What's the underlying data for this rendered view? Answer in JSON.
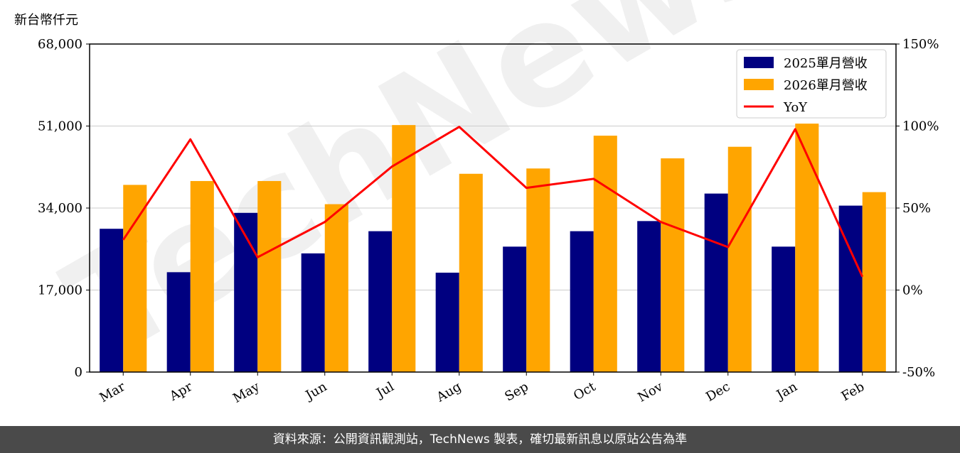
{
  "chart_data": {
    "type": "bar",
    "categories": [
      "Mar",
      "Apr",
      "May",
      "Jun",
      "Jul",
      "Aug",
      "Sep",
      "Oct",
      "Nov",
      "Dec",
      "Jan",
      "Feb"
    ],
    "series": [
      {
        "name": "2025單月營收",
        "type": "bar",
        "axis": "left",
        "color": "#000080",
        "values": [
          29700,
          20700,
          33000,
          24600,
          29200,
          20600,
          26000,
          29200,
          31300,
          37000,
          26000,
          34500
        ]
      },
      {
        "name": "2026單月營收",
        "type": "bar",
        "axis": "left",
        "color": "#FFA500",
        "values": [
          38800,
          39600,
          39600,
          34800,
          51200,
          41100,
          42200,
          49000,
          44300,
          46700,
          51500,
          37300
        ]
      },
      {
        "name": "YoY",
        "type": "line",
        "axis": "right",
        "color": "#FF0000",
        "values": [
          30.6,
          91.9,
          20.0,
          41.5,
          75.3,
          99.5,
          62.3,
          67.8,
          41.5,
          26.2,
          98.1,
          8.1
        ]
      }
    ],
    "ylabel": "新台幣仟元",
    "ylim": [
      0,
      68000
    ],
    "yticks": [
      "0",
      "17,000",
      "34,000",
      "51,000",
      "68,000"
    ],
    "y2lim": [
      -50,
      150
    ],
    "y2ticks": [
      "-50%",
      "0%",
      "50%",
      "100%",
      "150%"
    ],
    "grid": true,
    "legend": "top-right"
  },
  "watermark": "TechNews",
  "footer": {
    "text": "資料來源：公開資訊觀測站，TechNews 製表，確切最新訊息以原站公告為準"
  }
}
